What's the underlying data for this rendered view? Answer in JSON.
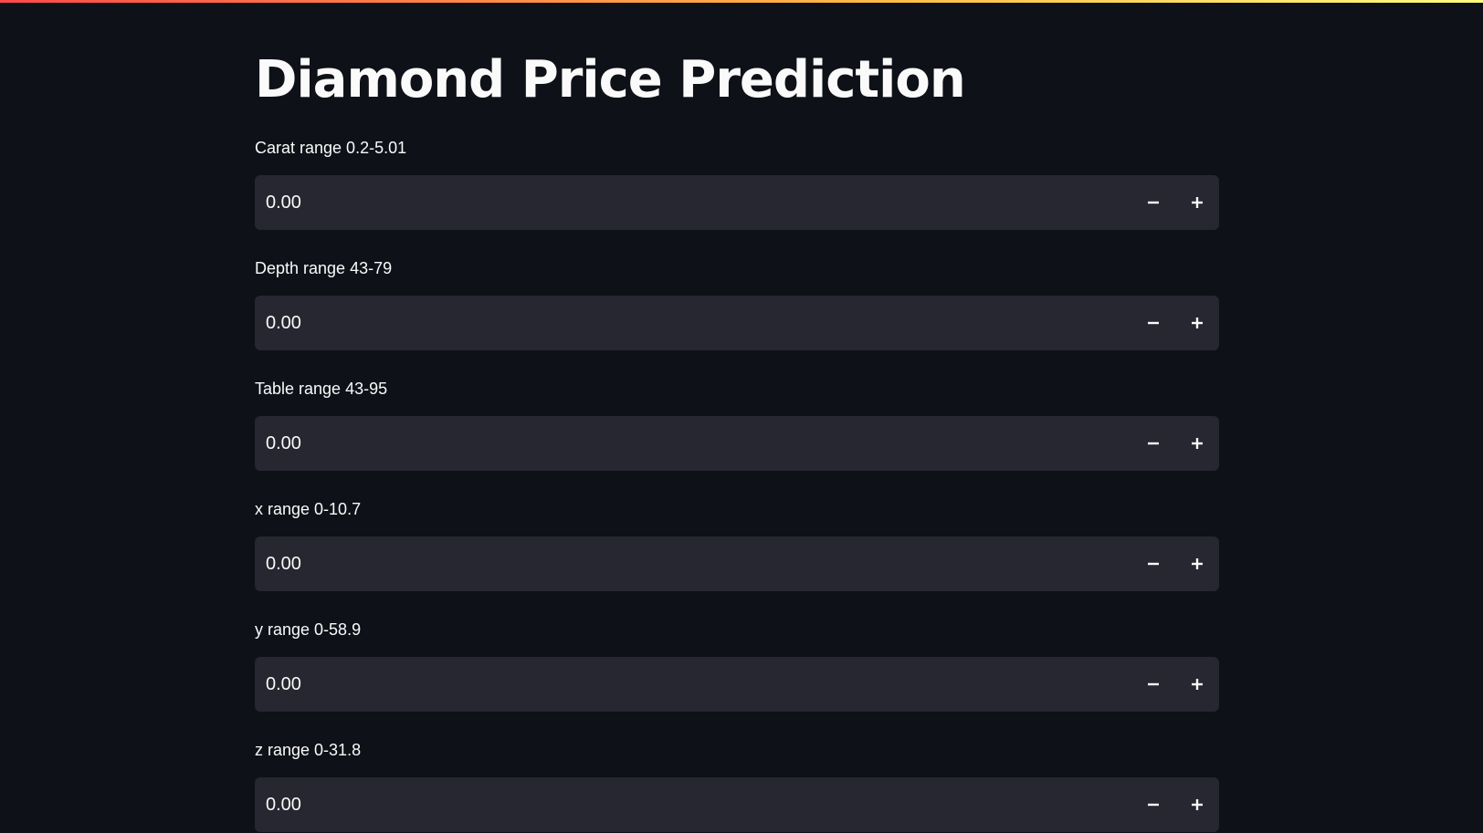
{
  "app": {
    "title": "Diamond Price Prediction"
  },
  "colors": {
    "background": "#0e1117",
    "input_background": "#262730",
    "text": "#fafafa",
    "header_gradient_start": "#ff4b4b",
    "header_gradient_end": "#fffd80"
  },
  "fields": [
    {
      "label": "Carat range 0.2-5.01",
      "value": "0.00",
      "decrement_icon": "minus-icon",
      "increment_icon": "plus-icon"
    },
    {
      "label": "Depth range 43-79",
      "value": "0.00",
      "decrement_icon": "minus-icon",
      "increment_icon": "plus-icon"
    },
    {
      "label": "Table range 43-95",
      "value": "0.00",
      "decrement_icon": "minus-icon",
      "increment_icon": "plus-icon"
    },
    {
      "label": "x range 0-10.7",
      "value": "0.00",
      "decrement_icon": "minus-icon",
      "increment_icon": "plus-icon"
    },
    {
      "label": "y range 0-58.9",
      "value": "0.00",
      "decrement_icon": "minus-icon",
      "increment_icon": "plus-icon"
    },
    {
      "label": "z range 0-31.8",
      "value": "0.00",
      "decrement_icon": "minus-icon",
      "increment_icon": "plus-icon"
    }
  ]
}
